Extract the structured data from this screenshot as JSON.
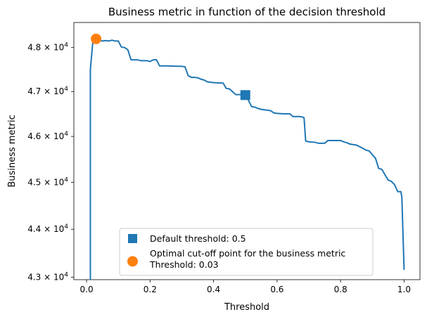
{
  "chart_data": {
    "type": "line",
    "title": "Business metric in function of the decision threshold",
    "xlabel": "Threshold",
    "ylabel": "Business metric",
    "xlim": [
      -0.04,
      1.05
    ],
    "ylim": [
      42950,
      48580
    ],
    "log_scale_y": true,
    "grid": false,
    "legend_position": "lower-center",
    "x_ticks": [
      {
        "value": 0.0,
        "label": "0.0"
      },
      {
        "value": 0.2,
        "label": "0.2"
      },
      {
        "value": 0.4,
        "label": "0.4"
      },
      {
        "value": 0.6,
        "label": "0.6"
      },
      {
        "value": 0.8,
        "label": "0.8"
      },
      {
        "value": 1.0,
        "label": "1.0"
      }
    ],
    "y_ticks": [
      {
        "value": 43000,
        "label": "4.3 × 10",
        "exp": "4"
      },
      {
        "value": 44000,
        "label": "4.4 × 10",
        "exp": "4"
      },
      {
        "value": 45000,
        "label": "4.5 × 10",
        "exp": "4"
      },
      {
        "value": 46000,
        "label": "4.6 × 10",
        "exp": "4"
      },
      {
        "value": 47000,
        "label": "4.7 × 10",
        "exp": "4"
      },
      {
        "value": 48000,
        "label": "4.8 × 10",
        "exp": "4"
      }
    ],
    "series": [
      {
        "color": "#1f77b4",
        "x": [
          0.012,
          0.012,
          0.02,
          0.03,
          0.05,
          0.06,
          0.07,
          0.08,
          0.09,
          0.1,
          0.11,
          0.12,
          0.13,
          0.14,
          0.15,
          0.16,
          0.17,
          0.18,
          0.19,
          0.2,
          0.21,
          0.22,
          0.23,
          0.25,
          0.3,
          0.31,
          0.32,
          0.33,
          0.34,
          0.35,
          0.36,
          0.37,
          0.38,
          0.4,
          0.43,
          0.44,
          0.45,
          0.47,
          0.49,
          0.5,
          0.51,
          0.52,
          0.53,
          0.54,
          0.55,
          0.56,
          0.57,
          0.58,
          0.59,
          0.6,
          0.62,
          0.64,
          0.65,
          0.66,
          0.67,
          0.68,
          0.685,
          0.69,
          0.7,
          0.72,
          0.73,
          0.75,
          0.76,
          0.77,
          0.78,
          0.8,
          0.81,
          0.82,
          0.83,
          0.85,
          0.87,
          0.88,
          0.89,
          0.9,
          0.91,
          0.92,
          0.93,
          0.94,
          0.95,
          0.96,
          0.97,
          0.98,
          0.99,
          0.993,
          1.0
        ],
        "y": [
          42950,
          47500,
          48150,
          48200,
          48150,
          48160,
          48150,
          48170,
          48150,
          48150,
          48010,
          48000,
          47950,
          47720,
          47720,
          47720,
          47700,
          47700,
          47700,
          47680,
          47720,
          47720,
          47580,
          47580,
          47570,
          47560,
          47360,
          47320,
          47320,
          47310,
          47280,
          47260,
          47220,
          47200,
          47190,
          47070,
          47060,
          46930,
          46930,
          46920,
          46800,
          46660,
          46650,
          46620,
          46600,
          46590,
          46580,
          46570,
          46520,
          46510,
          46500,
          46500,
          46440,
          46440,
          46440,
          46430,
          46410,
          45900,
          45880,
          45870,
          45850,
          45850,
          45910,
          45910,
          45910,
          45910,
          45880,
          45860,
          45830,
          45810,
          45740,
          45700,
          45680,
          45600,
          45520,
          45300,
          45280,
          45160,
          45050,
          45020,
          44950,
          44800,
          44800,
          44680,
          43150
        ]
      },
      {
        "name": "Default threshold: 0.5",
        "type": "marker",
        "marker": "square",
        "color": "#1f77b4",
        "x": [
          0.5
        ],
        "y": [
          46920
        ]
      },
      {
        "name": "Optimal cut-off point for the business metric\nThreshold: 0.03",
        "type": "marker",
        "marker": "circle",
        "color": "#ff7f0e",
        "x": [
          0.03
        ],
        "y": [
          48200
        ]
      }
    ],
    "legend": [
      {
        "marker": "square",
        "color": "#1f77b4",
        "lines": [
          "Default threshold: 0.5"
        ]
      },
      {
        "marker": "circle",
        "color": "#ff7f0e",
        "lines": [
          "Optimal cut-off point for the business metric",
          "Threshold: 0.03"
        ]
      }
    ]
  }
}
